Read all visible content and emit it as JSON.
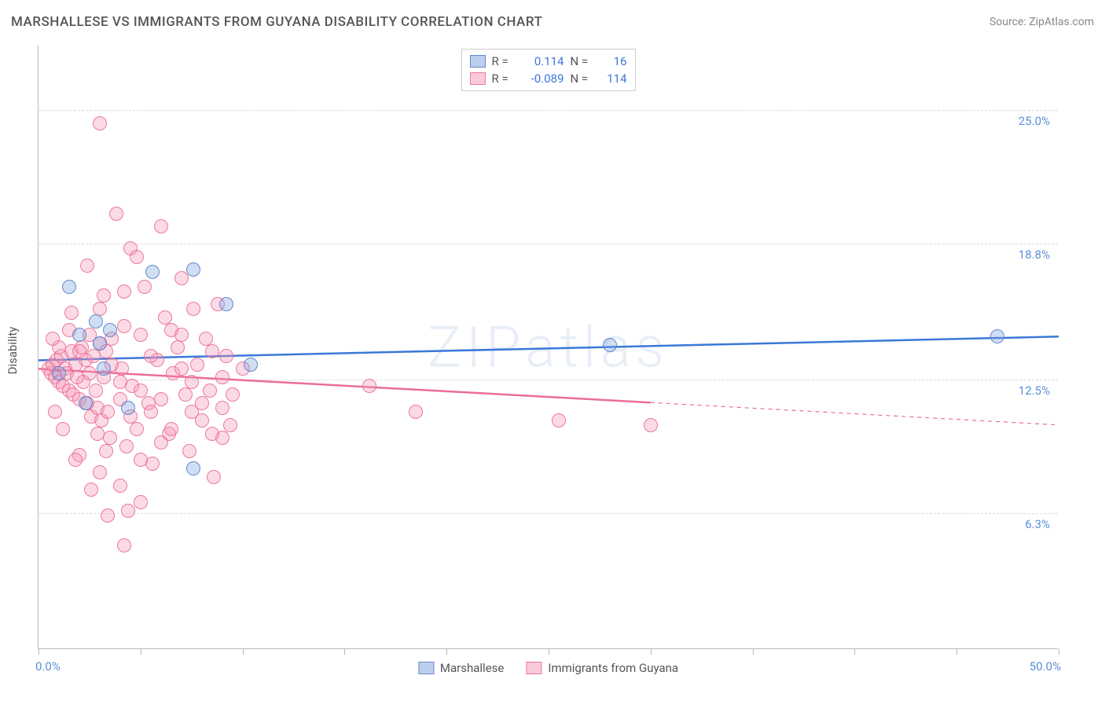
{
  "title": "MARSHALLESE VS IMMIGRANTS FROM GUYANA DISABILITY CORRELATION CHART",
  "source": "Source: ZipAtlas.com",
  "watermark": "ZIPatlas",
  "ylabel": "Disability",
  "chart": {
    "type": "scatter",
    "xlim": [
      0,
      50
    ],
    "ylim": [
      0,
      28
    ],
    "x_axis_labels": {
      "left": "0.0%",
      "right": "50.0%"
    },
    "y_ticks": [
      {
        "value": 6.3,
        "label": "6.3%"
      },
      {
        "value": 12.5,
        "label": "12.5%"
      },
      {
        "value": 18.8,
        "label": "18.8%"
      },
      {
        "value": 25.0,
        "label": "25.0%"
      }
    ],
    "x_tick_positions": [
      0,
      5,
      10,
      15,
      20,
      25,
      30,
      35,
      40,
      45,
      50
    ],
    "grid_color": "#dddddd",
    "axis_color": "#bbbbbb",
    "background_color": "#ffffff",
    "series": [
      {
        "name": "Marshallese",
        "color_fill": "rgba(120,160,220,0.35)",
        "color_stroke": "#5a82c8",
        "marker_size": 18,
        "R": 0.114,
        "N": 16,
        "trend": {
          "x1": 0,
          "y1": 13.4,
          "x2": 50,
          "y2": 14.5,
          "color": "#3b78d8",
          "width": 2.5,
          "dashed_after_x": null
        },
        "points": [
          [
            1.5,
            16.8
          ],
          [
            3.0,
            14.2
          ],
          [
            5.6,
            17.5
          ],
          [
            7.6,
            17.6
          ],
          [
            2.0,
            14.6
          ],
          [
            3.5,
            14.8
          ],
          [
            9.2,
            16.0
          ],
          [
            10.4,
            13.2
          ],
          [
            7.6,
            8.4
          ],
          [
            47.0,
            14.5
          ],
          [
            28.0,
            14.1
          ],
          [
            1.0,
            12.8
          ],
          [
            2.3,
            11.4
          ],
          [
            3.2,
            13.0
          ],
          [
            4.4,
            11.2
          ],
          [
            2.8,
            15.2
          ]
        ]
      },
      {
        "name": "Immigrants from Guyana",
        "color_fill": "rgba(245,150,180,0.35)",
        "color_stroke": "#eb6e96",
        "marker_size": 18,
        "R": -0.089,
        "N": 114,
        "trend": {
          "x1": 0,
          "y1": 13.0,
          "x2": 50,
          "y2": 10.4,
          "color": "#eb6e96",
          "width": 2.5,
          "dashed_after_x": 30
        },
        "points": [
          [
            0.5,
            13.0
          ],
          [
            0.6,
            12.8
          ],
          [
            0.7,
            13.2
          ],
          [
            0.8,
            12.6
          ],
          [
            0.9,
            13.4
          ],
          [
            1.0,
            12.4
          ],
          [
            1.1,
            13.6
          ],
          [
            1.2,
            12.2
          ],
          [
            1.3,
            13.0
          ],
          [
            1.4,
            12.8
          ],
          [
            1.5,
            12.0
          ],
          [
            1.6,
            13.8
          ],
          [
            1.7,
            11.8
          ],
          [
            1.8,
            13.2
          ],
          [
            1.9,
            12.6
          ],
          [
            2.0,
            11.6
          ],
          [
            2.1,
            14.0
          ],
          [
            2.2,
            12.4
          ],
          [
            2.3,
            13.4
          ],
          [
            2.4,
            11.4
          ],
          [
            2.5,
            12.8
          ],
          [
            2.6,
            10.8
          ],
          [
            2.7,
            13.6
          ],
          [
            2.8,
            12.0
          ],
          [
            2.9,
            11.2
          ],
          [
            3.0,
            14.2
          ],
          [
            3.1,
            10.6
          ],
          [
            3.2,
            12.6
          ],
          [
            3.3,
            13.8
          ],
          [
            3.4,
            11.0
          ],
          [
            3.5,
            9.8
          ],
          [
            3.6,
            14.4
          ],
          [
            3.8,
            20.2
          ],
          [
            4.0,
            11.6
          ],
          [
            4.1,
            13.0
          ],
          [
            4.2,
            15.0
          ],
          [
            4.3,
            9.4
          ],
          [
            4.5,
            18.6
          ],
          [
            4.6,
            12.2
          ],
          [
            4.8,
            10.2
          ],
          [
            5.0,
            14.6
          ],
          [
            5.2,
            16.8
          ],
          [
            5.4,
            11.4
          ],
          [
            5.6,
            8.6
          ],
          [
            5.8,
            13.4
          ],
          [
            6.0,
            19.6
          ],
          [
            6.2,
            15.4
          ],
          [
            6.4,
            10.0
          ],
          [
            6.6,
            12.8
          ],
          [
            6.8,
            14.0
          ],
          [
            7.0,
            17.2
          ],
          [
            7.2,
            11.8
          ],
          [
            7.4,
            9.2
          ],
          [
            7.6,
            15.8
          ],
          [
            7.8,
            13.2
          ],
          [
            8.0,
            10.6
          ],
          [
            8.2,
            14.4
          ],
          [
            8.4,
            12.0
          ],
          [
            8.6,
            8.0
          ],
          [
            8.8,
            16.0
          ],
          [
            9.0,
            11.2
          ],
          [
            9.2,
            13.6
          ],
          [
            9.4,
            10.4
          ],
          [
            2.0,
            9.0
          ],
          [
            3.0,
            8.2
          ],
          [
            4.0,
            7.6
          ],
          [
            5.0,
            6.8
          ],
          [
            4.2,
            4.8
          ],
          [
            3.4,
            6.2
          ],
          [
            2.6,
            7.4
          ],
          [
            1.8,
            8.8
          ],
          [
            1.2,
            10.2
          ],
          [
            0.8,
            11.0
          ],
          [
            6.5,
            14.8
          ],
          [
            7.0,
            13.0
          ],
          [
            3.2,
            16.4
          ],
          [
            2.4,
            17.8
          ],
          [
            1.6,
            15.6
          ],
          [
            4.8,
            18.2
          ],
          [
            3.0,
            24.4
          ],
          [
            5.5,
            11.0
          ],
          [
            6.0,
            9.6
          ],
          [
            7.5,
            11.0
          ],
          [
            8.5,
            13.8
          ],
          [
            9.0,
            9.8
          ],
          [
            4.0,
            12.4
          ],
          [
            4.5,
            10.8
          ],
          [
            5.0,
            12.0
          ],
          [
            5.5,
            13.6
          ],
          [
            6.0,
            11.6
          ],
          [
            6.5,
            10.2
          ],
          [
            7.0,
            14.6
          ],
          [
            7.5,
            12.4
          ],
          [
            8.0,
            11.4
          ],
          [
            8.5,
            10.0
          ],
          [
            9.0,
            12.6
          ],
          [
            9.5,
            11.8
          ],
          [
            10.0,
            13.0
          ],
          [
            16.2,
            12.2
          ],
          [
            18.5,
            11.0
          ],
          [
            25.5,
            10.6
          ],
          [
            30.0,
            10.4
          ],
          [
            2.0,
            13.8
          ],
          [
            2.5,
            14.6
          ],
          [
            3.0,
            15.8
          ],
          [
            1.5,
            14.8
          ],
          [
            1.0,
            14.0
          ],
          [
            0.7,
            14.4
          ],
          [
            4.2,
            16.6
          ],
          [
            3.6,
            13.2
          ],
          [
            2.9,
            10.0
          ],
          [
            3.3,
            9.2
          ],
          [
            5.0,
            8.8
          ],
          [
            4.4,
            6.4
          ]
        ]
      }
    ]
  },
  "legend_top": [
    {
      "swatch": "blue",
      "R_label": "R =",
      "R": "0.114",
      "N_label": "N =",
      "N": "16"
    },
    {
      "swatch": "pink",
      "R_label": "R =",
      "R": "-0.089",
      "N_label": "N =",
      "N": "114"
    }
  ],
  "legend_bottom": [
    {
      "swatch": "blue",
      "label": "Marshallese"
    },
    {
      "swatch": "pink",
      "label": "Immigrants from Guyana"
    }
  ]
}
